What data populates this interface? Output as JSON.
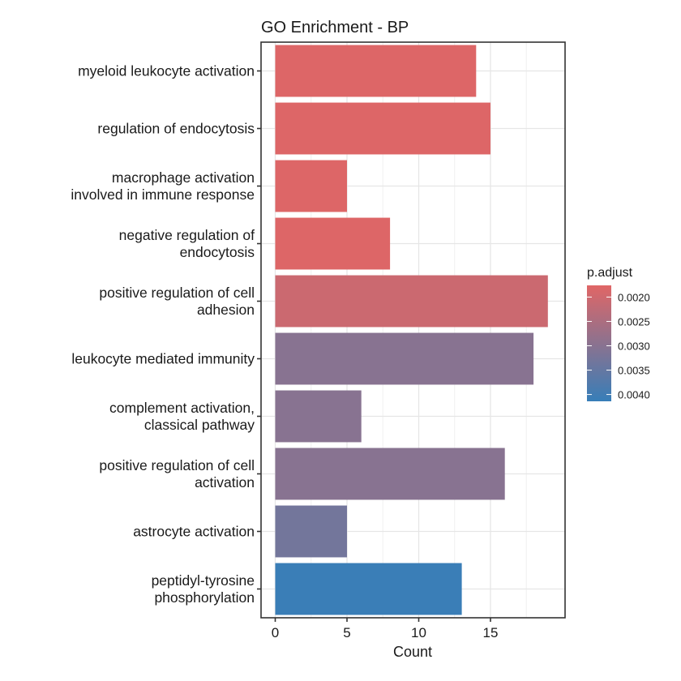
{
  "chart_data": {
    "type": "bar",
    "orientation": "horizontal",
    "title": "GO Enrichment - BP",
    "xlabel": "Count",
    "ylabel": "",
    "xlim": [
      0,
      19.5
    ],
    "x_ticks": [
      0,
      5,
      10,
      15
    ],
    "grid": true,
    "legend_position": "right",
    "categories": [
      "myeloid leukocyte activation",
      "regulation of endocytosis",
      "macrophage activation\ninvolved in immune response",
      "negative regulation of\nendocytosis",
      "positive regulation of cell\nadhesion",
      "leukocyte mediated immunity",
      "complement activation,\nclassical pathway",
      "positive regulation of cell\nactivation",
      "astrocyte activation",
      "peptidyl-tyrosine\nphosphorylation"
    ],
    "values": [
      14,
      15,
      5,
      8,
      19,
      18,
      6,
      16,
      5,
      13
    ],
    "color_values": [
      0.0018,
      0.0018,
      0.0018,
      0.0018,
      0.00205,
      0.003,
      0.003,
      0.003,
      0.0033,
      0.0041
    ],
    "color_legend": {
      "title": "p.adjust",
      "min": 0.00176,
      "max": 0.00414,
      "low_color": "#E06666",
      "high_color": "#377EB8",
      "ticks": [
        0.002,
        0.0025,
        0.003,
        0.0035,
        0.004
      ],
      "tick_labels": [
        "0.0020",
        "0.0025",
        "0.0030",
        "0.0035",
        "0.0040"
      ]
    }
  }
}
